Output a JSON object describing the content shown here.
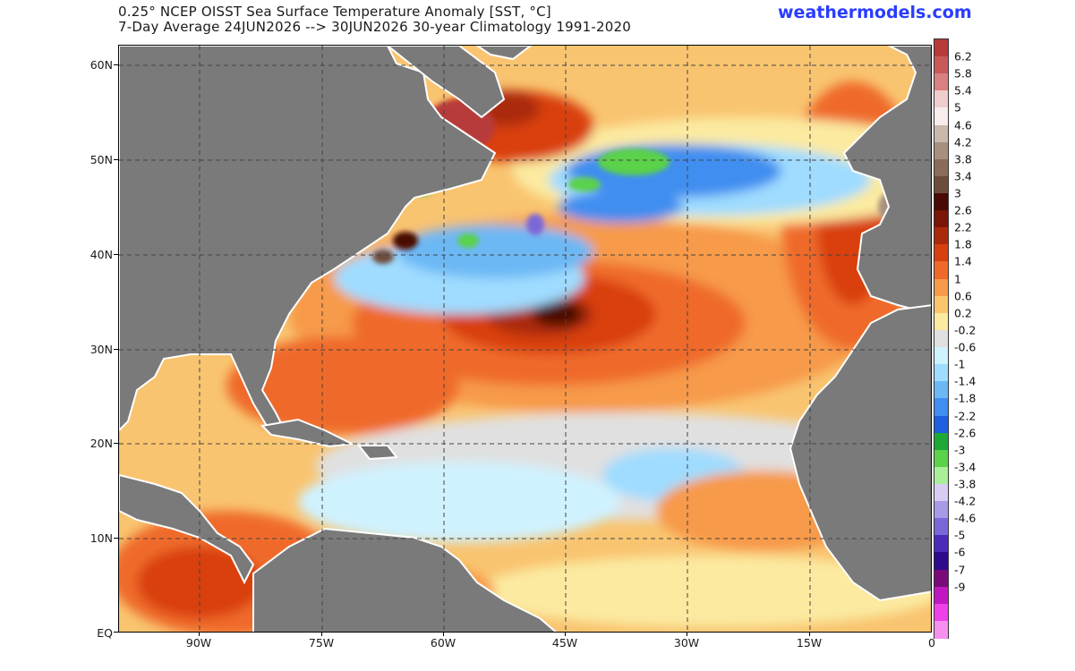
{
  "header": {
    "title_line1": "0.25° NCEP OISST Sea Surface Temperature Anomaly [SST, °C]",
    "title_line2": "7-Day Average 24JUN2026 --> 30JUN2026   30-year Climatology 1991-2020",
    "brand": "weathermodels.com"
  },
  "map": {
    "lat_labels": [
      "60N",
      "50N",
      "40N",
      "30N",
      "20N",
      "10N",
      "EQ"
    ],
    "lon_labels": [
      "90W",
      "75W",
      "60W",
      "45W",
      "30W",
      "15W",
      "0"
    ]
  },
  "colorbar": {
    "labels": [
      "6.2",
      "5.8",
      "5.4",
      "5",
      "4.6",
      "4.2",
      "3.8",
      "3.4",
      "3",
      "2.6",
      "2.2",
      "1.8",
      "1.4",
      "1",
      "0.6",
      "0.2",
      "-0.2",
      "-0.6",
      "-1",
      "-1.4",
      "-1.8",
      "-2.2",
      "-2.6",
      "-3",
      "-3.4",
      "-3.8",
      "-4.2",
      "-4.6",
      "-5",
      "-6",
      "-7",
      "-9"
    ],
    "colors": [
      "#b83a3a",
      "#c85a5a",
      "#d98080",
      "#f0cccc",
      "#f8ecec",
      "#cbb8ad",
      "#a8907f",
      "#8a6c5a",
      "#6e4c3c",
      "#4a0a05",
      "#7a1508",
      "#ab2a0c",
      "#d94010",
      "#ef6a2a",
      "#f79a4a",
      "#fbc56e",
      "#fbeaa0",
      "#e0e0e0",
      "#cff2ff",
      "#9fdcff",
      "#6cb8f5",
      "#3f8ef0",
      "#1e5ee0",
      "#1ea838",
      "#5ad24a",
      "#a9ee98",
      "#d8ccf5",
      "#a89ae6",
      "#7a68d8",
      "#4a2cb8",
      "#300a8c",
      "#7a0a7a",
      "#c018c0",
      "#f040e8",
      "#f890f0"
    ]
  },
  "colors": {
    "land": "#7a7a7a",
    "brand": "#2a3cff",
    "ocean_base": "#fbd98a"
  }
}
